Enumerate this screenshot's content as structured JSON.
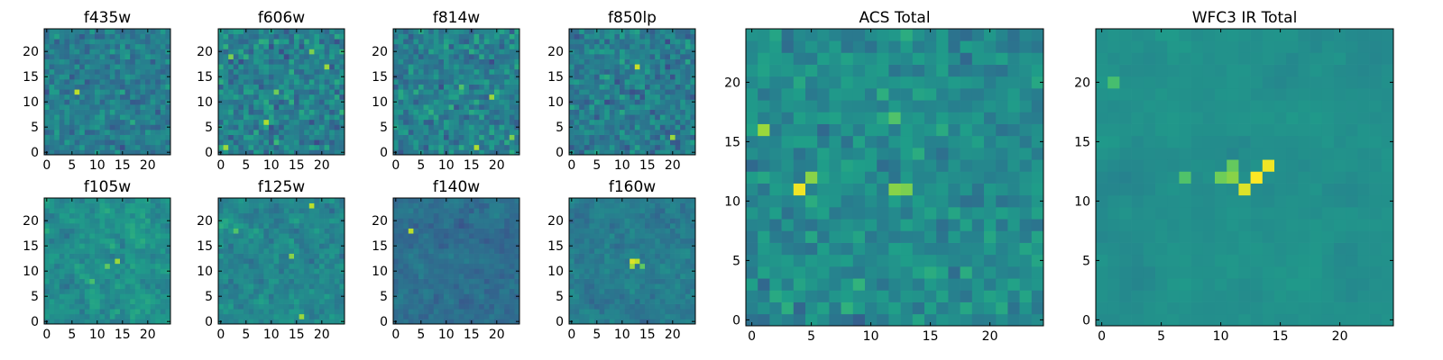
{
  "figure": {
    "background": "#ffffff",
    "colormap": "viridis"
  },
  "chart_data": [
    {
      "type": "heatmap",
      "title": "f435w",
      "grid_size": 25,
      "xlim": [
        -0.5,
        24.5
      ],
      "ylim": [
        -0.5,
        24.5
      ],
      "xticks": [
        0,
        5,
        10,
        15,
        20
      ],
      "yticks": [
        0,
        5,
        10,
        15,
        20
      ],
      "grid": false,
      "hotspots": [
        {
          "x": 6,
          "y": 12,
          "v": 0.9
        }
      ],
      "seed": 11,
      "noise_mean": 0.42,
      "noise_sd": 0.11,
      "smooth": 0
    },
    {
      "type": "heatmap",
      "title": "f606w",
      "grid_size": 25,
      "xlim": [
        -0.5,
        24.5
      ],
      "ylim": [
        -0.5,
        24.5
      ],
      "xticks": [
        0,
        5,
        10,
        15,
        20
      ],
      "yticks": [
        0,
        5,
        10,
        15,
        20
      ],
      "grid": false,
      "hotspots": [
        {
          "x": 9,
          "y": 6,
          "v": 0.88
        },
        {
          "x": 21,
          "y": 17,
          "v": 0.85
        },
        {
          "x": 2,
          "y": 19,
          "v": 0.8
        },
        {
          "x": 18,
          "y": 20,
          "v": 0.8
        },
        {
          "x": 11,
          "y": 12,
          "v": 0.78
        },
        {
          "x": 1,
          "y": 1,
          "v": 0.85
        }
      ],
      "seed": 23,
      "noise_mean": 0.44,
      "noise_sd": 0.14,
      "smooth": 0
    },
    {
      "type": "heatmap",
      "title": "f814w",
      "grid_size": 25,
      "xlim": [
        -0.5,
        24.5
      ],
      "ylim": [
        -0.5,
        24.5
      ],
      "xticks": [
        0,
        5,
        10,
        15,
        20
      ],
      "yticks": [
        0,
        5,
        10,
        15,
        20
      ],
      "grid": false,
      "hotspots": [
        {
          "x": 19,
          "y": 11,
          "v": 0.85
        },
        {
          "x": 16,
          "y": 1,
          "v": 0.88
        },
        {
          "x": 23,
          "y": 3,
          "v": 0.8
        },
        {
          "x": 13,
          "y": 13,
          "v": 0.72
        }
      ],
      "seed": 37,
      "noise_mean": 0.44,
      "noise_sd": 0.13,
      "smooth": 0
    },
    {
      "type": "heatmap",
      "title": "f850lp",
      "grid_size": 25,
      "xlim": [
        -0.5,
        24.5
      ],
      "ylim": [
        -0.5,
        24.5
      ],
      "xticks": [
        0,
        5,
        10,
        15,
        20
      ],
      "yticks": [
        0,
        5,
        10,
        15,
        20
      ],
      "grid": false,
      "hotspots": [
        {
          "x": 13,
          "y": 17,
          "v": 0.92
        },
        {
          "x": 20,
          "y": 3,
          "v": 0.85
        }
      ],
      "seed": 41,
      "noise_mean": 0.42,
      "noise_sd": 0.12,
      "smooth": 0
    },
    {
      "type": "heatmap",
      "title": "f105w",
      "grid_size": 25,
      "xlim": [
        -0.5,
        24.5
      ],
      "ylim": [
        -0.5,
        24.5
      ],
      "xticks": [
        0,
        5,
        10,
        15,
        20
      ],
      "yticks": [
        0,
        5,
        10,
        15,
        20
      ],
      "grid": false,
      "hotspots": [
        {
          "x": 14,
          "y": 12,
          "v": 0.85
        },
        {
          "x": 12,
          "y": 11,
          "v": 0.75
        },
        {
          "x": 9,
          "y": 8,
          "v": 0.7
        }
      ],
      "seed": 53,
      "noise_mean": 0.5,
      "noise_sd": 0.14,
      "smooth": 1
    },
    {
      "type": "heatmap",
      "title": "f125w",
      "grid_size": 25,
      "xlim": [
        -0.5,
        24.5
      ],
      "ylim": [
        -0.5,
        24.5
      ],
      "xticks": [
        0,
        5,
        10,
        15,
        20
      ],
      "yticks": [
        0,
        5,
        10,
        15,
        20
      ],
      "grid": false,
      "hotspots": [
        {
          "x": 18,
          "y": 23,
          "v": 0.9
        },
        {
          "x": 14,
          "y": 13,
          "v": 0.82
        },
        {
          "x": 16,
          "y": 1,
          "v": 0.85
        },
        {
          "x": 3,
          "y": 18,
          "v": 0.72
        }
      ],
      "seed": 61,
      "noise_mean": 0.46,
      "noise_sd": 0.14,
      "smooth": 1
    },
    {
      "type": "heatmap",
      "title": "f140w",
      "grid_size": 25,
      "xlim": [
        -0.5,
        24.5
      ],
      "ylim": [
        -0.5,
        24.5
      ],
      "xticks": [
        0,
        5,
        10,
        15,
        20
      ],
      "yticks": [
        0,
        5,
        10,
        15,
        20
      ],
      "grid": false,
      "hotspots": [
        {
          "x": 3,
          "y": 18,
          "v": 0.9
        }
      ],
      "seed": 71,
      "noise_mean": 0.36,
      "noise_sd": 0.1,
      "smooth": 1
    },
    {
      "type": "heatmap",
      "title": "f160w",
      "grid_size": 25,
      "xlim": [
        -0.5,
        24.5
      ],
      "ylim": [
        -0.5,
        24.5
      ],
      "xticks": [
        0,
        5,
        10,
        15,
        20
      ],
      "yticks": [
        0,
        5,
        10,
        15,
        20
      ],
      "grid": false,
      "hotspots": [
        {
          "x": 12,
          "y": 12,
          "v": 0.95
        },
        {
          "x": 13,
          "y": 12,
          "v": 0.9
        },
        {
          "x": 12,
          "y": 11,
          "v": 0.85
        },
        {
          "x": 14,
          "y": 11,
          "v": 0.75
        }
      ],
      "seed": 83,
      "noise_mean": 0.42,
      "noise_sd": 0.11,
      "smooth": 1
    },
    {
      "type": "heatmap",
      "title": "ACS Total",
      "grid_size": 25,
      "xlim": [
        -0.5,
        24.5
      ],
      "ylim": [
        -0.5,
        24.5
      ],
      "xticks": [
        0,
        5,
        10,
        15,
        20
      ],
      "yticks": [
        0,
        5,
        10,
        15,
        20
      ],
      "grid": false,
      "hotspots": [
        {
          "x": 4,
          "y": 11,
          "v": 0.98
        },
        {
          "x": 5,
          "y": 12,
          "v": 0.82
        },
        {
          "x": 12,
          "y": 11,
          "v": 0.82
        },
        {
          "x": 13,
          "y": 11,
          "v": 0.8
        },
        {
          "x": 1,
          "y": 16,
          "v": 0.85
        },
        {
          "x": 12,
          "y": 17,
          "v": 0.72
        }
      ],
      "seed": 97,
      "noise_mean": 0.48,
      "noise_sd": 0.1,
      "smooth": 0
    },
    {
      "type": "heatmap",
      "title": "WFC3 IR Total",
      "grid_size": 25,
      "xlim": [
        -0.5,
        24.5
      ],
      "ylim": [
        -0.5,
        24.5
      ],
      "xticks": [
        0,
        5,
        10,
        15,
        20
      ],
      "yticks": [
        0,
        5,
        10,
        15,
        20
      ],
      "grid": false,
      "hotspots": [
        {
          "x": 13,
          "y": 12,
          "v": 1.0
        },
        {
          "x": 14,
          "y": 13,
          "v": 0.98
        },
        {
          "x": 12,
          "y": 11,
          "v": 0.95
        },
        {
          "x": 11,
          "y": 12,
          "v": 0.82
        },
        {
          "x": 10,
          "y": 12,
          "v": 0.78
        },
        {
          "x": 11,
          "y": 13,
          "v": 0.76
        },
        {
          "x": 7,
          "y": 12,
          "v": 0.72
        },
        {
          "x": 1,
          "y": 20,
          "v": 0.7
        }
      ],
      "seed": 109,
      "noise_mean": 0.5,
      "noise_sd": 0.07,
      "smooth": 2
    }
  ]
}
